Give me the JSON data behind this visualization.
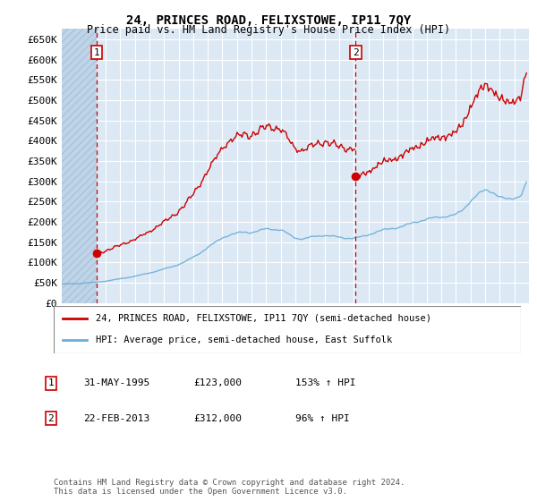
{
  "title": "24, PRINCES ROAD, FELIXSTOWE, IP11 7QY",
  "subtitle": "Price paid vs. HM Land Registry's House Price Index (HPI)",
  "hpi_label": "HPI: Average price, semi-detached house, East Suffolk",
  "property_label": "24, PRINCES ROAD, FELIXSTOWE, IP11 7QY (semi-detached house)",
  "sale1_date": "31-MAY-1995",
  "sale1_year": 1995.41,
  "sale1_price": 123000,
  "sale1_pct": "153%",
  "sale2_date": "22-FEB-2013",
  "sale2_year": 2013.13,
  "sale2_price": 312000,
  "sale2_pct": "96%",
  "ylim": [
    0,
    675000
  ],
  "yticks": [
    0,
    50000,
    100000,
    150000,
    200000,
    250000,
    300000,
    350000,
    400000,
    450000,
    500000,
    550000,
    600000,
    650000
  ],
  "xmin": 1993,
  "xmax": 2025,
  "background_color": "#dce9f5",
  "hatch_color": "#c0d4e8",
  "grid_color": "#ffffff",
  "hpi_color": "#6baed6",
  "property_color": "#cc0000",
  "vline_color": "#cc0000",
  "footer": "Contains HM Land Registry data © Crown copyright and database right 2024.\nThis data is licensed under the Open Government Licence v3.0."
}
